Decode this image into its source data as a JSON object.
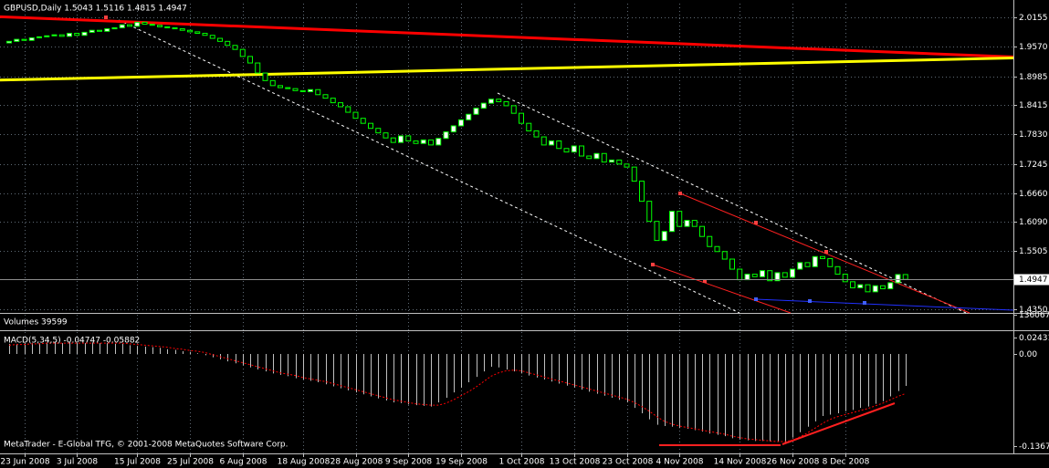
{
  "chart_data": [
    {
      "type": "candlestick",
      "title": "GBPUSD,Daily  1.5043 1.5116 1.4815 1.4947",
      "categories": [
        null,
        null,
        "23 Jun 2008",
        null,
        null,
        null,
        null,
        null,
        null,
        "3 Jul 2008",
        null,
        null,
        null,
        null,
        null,
        null,
        null,
        "15 Jul 2008",
        null,
        null,
        null,
        null,
        null,
        null,
        "25 Jul 2008",
        null,
        null,
        null,
        null,
        null,
        null,
        "6 Aug 2008",
        null,
        null,
        null,
        null,
        null,
        null,
        null,
        "18 Aug 2008",
        null,
        null,
        null,
        null,
        null,
        null,
        "28 Aug 2008",
        null,
        null,
        null,
        null,
        null,
        null,
        "9 Sep 2008",
        null,
        null,
        null,
        null,
        null,
        null,
        "19 Sep 2008",
        null,
        null,
        null,
        null,
        null,
        null,
        null,
        "1 Oct 2008",
        null,
        null,
        null,
        null,
        null,
        null,
        "13 Oct 2008",
        null,
        null,
        null,
        null,
        null,
        null,
        "23 Oct 2008",
        null,
        null,
        null,
        null,
        null,
        null,
        "4 Nov 2008",
        null,
        null,
        null,
        null,
        null,
        null,
        null,
        "14 Nov 2008",
        null,
        null,
        null,
        null,
        null,
        null,
        "26 Nov 2008",
        null,
        null,
        null,
        null,
        null,
        null,
        "8 Dec 2008",
        null,
        null,
        null,
        null,
        null,
        null,
        null,
        null
      ],
      "open": [
        1.965,
        1.968,
        1.972,
        1.97,
        1.975,
        1.977,
        1.979,
        1.981,
        1.978,
        1.984,
        1.98,
        1.986,
        1.99,
        1.988,
        1.993,
        1.995,
        2.001,
        1.998,
        2.006,
        2.002,
        2.0,
        1.997,
        1.995,
        1.993,
        1.99,
        1.987,
        1.984,
        1.98,
        1.974,
        1.968,
        1.96,
        1.952,
        1.938,
        1.925,
        1.905,
        1.89,
        1.88,
        1.876,
        1.874,
        1.87,
        1.868,
        1.872,
        1.862,
        1.855,
        1.846,
        1.838,
        1.827,
        1.815,
        1.805,
        1.795,
        1.786,
        1.776,
        1.767,
        1.78,
        1.77,
        1.765,
        1.772,
        1.762,
        1.775,
        1.788,
        1.8,
        1.812,
        1.823,
        1.835,
        1.845,
        1.853,
        1.848,
        1.84,
        1.825,
        1.805,
        1.79,
        1.778,
        1.762,
        1.77,
        1.755,
        1.748,
        1.76,
        1.74,
        1.735,
        1.745,
        1.728,
        1.732,
        1.724,
        1.718,
        1.69,
        1.65,
        1.61,
        1.572,
        1.59,
        1.63,
        1.6,
        1.612,
        1.6,
        1.58,
        1.56,
        1.55,
        1.535,
        1.515,
        1.494,
        1.505,
        1.5,
        1.512,
        1.492,
        1.508,
        1.499,
        1.515,
        1.528,
        1.52,
        1.54,
        1.536,
        1.52,
        1.505,
        1.49,
        1.478,
        1.484,
        1.47,
        1.482,
        1.476,
        1.488,
        1.5043
      ],
      "close": [
        1.968,
        1.972,
        1.97,
        1.975,
        1.977,
        1.979,
        1.981,
        1.978,
        1.984,
        1.98,
        1.986,
        1.99,
        1.988,
        1.993,
        1.995,
        2.001,
        1.998,
        2.006,
        2.002,
        2.0,
        1.997,
        1.995,
        1.993,
        1.99,
        1.987,
        1.984,
        1.98,
        1.974,
        1.968,
        1.96,
        1.952,
        1.938,
        1.925,
        1.905,
        1.89,
        1.88,
        1.876,
        1.874,
        1.87,
        1.868,
        1.872,
        1.862,
        1.855,
        1.846,
        1.838,
        1.827,
        1.815,
        1.805,
        1.795,
        1.786,
        1.776,
        1.767,
        1.78,
        1.77,
        1.765,
        1.772,
        1.762,
        1.775,
        1.788,
        1.8,
        1.812,
        1.823,
        1.835,
        1.845,
        1.853,
        1.848,
        1.84,
        1.825,
        1.805,
        1.79,
        1.778,
        1.762,
        1.77,
        1.755,
        1.748,
        1.76,
        1.74,
        1.735,
        1.745,
        1.728,
        1.732,
        1.724,
        1.718,
        1.69,
        1.65,
        1.61,
        1.572,
        1.59,
        1.63,
        1.6,
        1.612,
        1.6,
        1.58,
        1.56,
        1.55,
        1.535,
        1.515,
        1.494,
        1.505,
        1.5,
        1.512,
        1.492,
        1.508,
        1.499,
        1.515,
        1.528,
        1.52,
        1.54,
        1.536,
        1.52,
        1.505,
        1.49,
        1.478,
        1.484,
        1.47,
        1.482,
        1.476,
        1.488,
        1.5043,
        1.4947
      ],
      "up_color": "#ffffff",
      "down_color": "#000000",
      "edge_color": "#00ff00",
      "moving_averages": [
        {
          "color": "#ff0000",
          "values": [
            2.017,
            1.937
          ]
        },
        {
          "color": "#ffff00",
          "values": [
            1.891,
            1.935
          ]
        }
      ],
      "ylim": [
        1.428,
        2.043
      ],
      "yticks": [
        2.0155,
        {
          "value": 1.957,
          "label": "1.9570"
        },
        1.8985,
        1.8415,
        {
          "value": 1.783,
          "label": "1.7830"
        },
        1.7245,
        {
          "value": 1.666,
          "label": "1.6660"
        },
        {
          "value": 1.609,
          "label": "1.6090"
        },
        1.5505,
        {
          "value": 1.435,
          "label": "1.4350"
        }
      ],
      "grid": true
    },
    {
      "type": "volume",
      "title": "Volumes 39599",
      "ylim": [
        0,
        136067
      ],
      "yticks": [
        136067
      ],
      "grid": false
    },
    {
      "type": "macd",
      "title": "MACD(5,34,5) -0.04747 -0.05882",
      "histogram": [
        0.015,
        0.015,
        0.016,
        0.016,
        0.016,
        0.017,
        0.017,
        0.016,
        0.017,
        0.016,
        0.016,
        0.017,
        0.016,
        0.016,
        0.015,
        0.015,
        0.013,
        0.012,
        0.011,
        0.01,
        0.009,
        0.007,
        0.006,
        0.004,
        0.003,
        0.001,
        -0.002,
        -0.005,
        -0.008,
        -0.011,
        -0.014,
        -0.017,
        -0.02,
        -0.023,
        -0.026,
        -0.029,
        -0.031,
        -0.033,
        -0.036,
        -0.038,
        -0.04,
        -0.042,
        -0.045,
        -0.048,
        -0.051,
        -0.054,
        -0.057,
        -0.06,
        -0.063,
        -0.066,
        -0.069,
        -0.072,
        -0.073,
        -0.075,
        -0.076,
        -0.077,
        -0.078,
        -0.072,
        -0.065,
        -0.057,
        -0.05,
        -0.042,
        -0.034,
        -0.026,
        -0.019,
        -0.02,
        -0.023,
        -0.026,
        -0.029,
        -0.032,
        -0.035,
        -0.038,
        -0.041,
        -0.044,
        -0.047,
        -0.05,
        -0.053,
        -0.056,
        -0.059,
        -0.062,
        -0.065,
        -0.068,
        -0.072,
        -0.08,
        -0.088,
        -0.097,
        -0.105,
        -0.107,
        -0.108,
        -0.11,
        -0.111,
        -0.113,
        -0.115,
        -0.118,
        -0.12,
        -0.122,
        -0.125,
        -0.127,
        -0.128,
        -0.129,
        -0.129,
        -0.13,
        -0.13,
        -0.131,
        -0.124,
        -0.116,
        -0.108,
        -0.1,
        -0.092,
        -0.09,
        -0.088,
        -0.085,
        -0.083,
        -0.08,
        -0.078,
        -0.074,
        -0.07,
        -0.063,
        -0.055,
        -0.04747
      ],
      "signal": [
        0.013,
        0.014,
        0.014,
        0.015,
        0.015,
        0.016,
        0.016,
        0.016,
        0.016,
        0.016,
        0.016,
        0.016,
        0.016,
        0.016,
        0.016,
        0.016,
        0.015,
        0.014,
        0.013,
        0.012,
        0.011,
        0.01,
        0.008,
        0.007,
        0.005,
        0.004,
        0.002,
        -0.001,
        -0.004,
        -0.007,
        -0.01,
        -0.013,
        -0.016,
        -0.019,
        -0.022,
        -0.025,
        -0.028,
        -0.03,
        -0.032,
        -0.035,
        -0.037,
        -0.039,
        -0.041,
        -0.044,
        -0.047,
        -0.05,
        -0.053,
        -0.056,
        -0.059,
        -0.062,
        -0.065,
        -0.068,
        -0.07,
        -0.072,
        -0.074,
        -0.075,
        -0.076,
        -0.076,
        -0.073,
        -0.068,
        -0.062,
        -0.056,
        -0.049,
        -0.041,
        -0.033,
        -0.028,
        -0.025,
        -0.024,
        -0.025,
        -0.028,
        -0.031,
        -0.034,
        -0.037,
        -0.04,
        -0.043,
        -0.046,
        -0.049,
        -0.052,
        -0.055,
        -0.058,
        -0.061,
        -0.064,
        -0.067,
        -0.072,
        -0.078,
        -0.085,
        -0.093,
        -0.1,
        -0.104,
        -0.107,
        -0.109,
        -0.111,
        -0.113,
        -0.115,
        -0.117,
        -0.119,
        -0.122,
        -0.124,
        -0.126,
        -0.127,
        -0.128,
        -0.129,
        -0.13,
        -0.13,
        -0.128,
        -0.123,
        -0.117,
        -0.11,
        -0.103,
        -0.097,
        -0.093,
        -0.09,
        -0.087,
        -0.084,
        -0.081,
        -0.077,
        -0.073,
        -0.068,
        -0.063,
        -0.05882
      ],
      "histogram_color": "#c0c0c0",
      "signal_color": "#ff0000",
      "ylim": [
        -0.1475,
        0.0324
      ],
      "yticks": [
        0.02431,
        {
          "value": 0,
          "label": "0.00"
        },
        -0.13672
      ],
      "grid": false
    }
  ],
  "footer": "MetaTrader - E-Global TFG, © 2001-2008 MetaQuotes Software Corp."
}
